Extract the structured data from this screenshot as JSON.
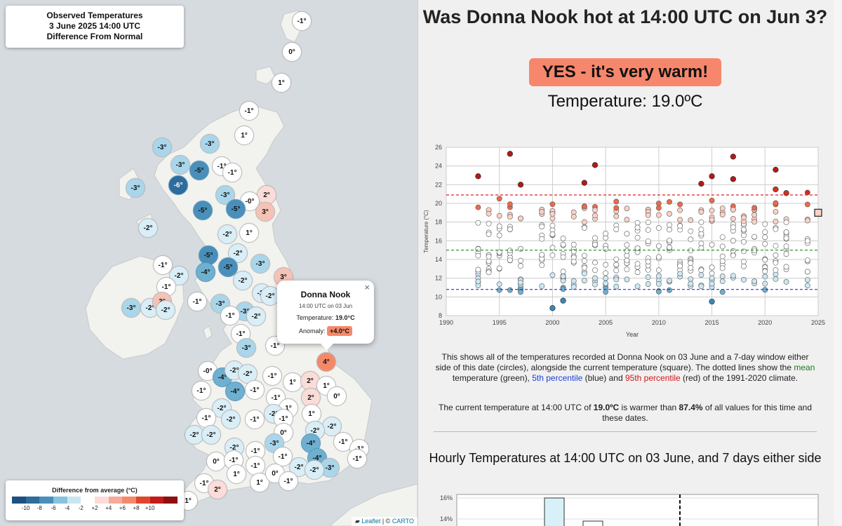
{
  "map": {
    "title_lines": [
      "Observed Temperatures",
      "3 June 2025 14:00 UTC",
      "Difference From Normal"
    ],
    "legend": {
      "title": "Difference from average (°C)",
      "colors": [
        "#1c4f82",
        "#2d6c9c",
        "#4a8fba",
        "#86c3de",
        "#c8e6f2",
        "#ffffff",
        "#fbdcd8",
        "#f7aa99",
        "#f4896a",
        "#e0452e",
        "#c41a1a",
        "#8f0f0f"
      ],
      "ticks": [
        "-10",
        "-8",
        "-6",
        "-4",
        "-2",
        "+2",
        "+4",
        "+6",
        "+8",
        "+10"
      ]
    },
    "markers": [
      {
        "label": "-1°",
        "v": -1
      },
      {
        "label": "0°",
        "v": 0
      },
      {
        "label": "1°",
        "v": 1
      },
      {
        "label": "-1°",
        "v": -1
      },
      {
        "label": "1°",
        "v": 1
      },
      {
        "label": "-3°",
        "v": -3
      },
      {
        "label": "-3°",
        "v": -3
      },
      {
        "label": "-3°",
        "v": -3
      },
      {
        "label": "-5°",
        "v": -5
      },
      {
        "label": "-1°",
        "v": -1
      },
      {
        "label": "-1°",
        "v": -1
      },
      {
        "label": "-6°",
        "v": -6
      },
      {
        "label": "-3°",
        "v": -3
      },
      {
        "label": "-3°",
        "v": -3
      },
      {
        "label": "2°",
        "v": 2
      },
      {
        "label": "-0°",
        "v": 0
      },
      {
        "label": "-5°",
        "v": -5
      },
      {
        "label": "-5°",
        "v": -5
      },
      {
        "label": "3°",
        "v": 3
      },
      {
        "label": "-2°",
        "v": -2
      },
      {
        "label": "-2°",
        "v": -2
      },
      {
        "label": "1°",
        "v": 1
      },
      {
        "label": "-5°",
        "v": -5
      },
      {
        "label": "-2°",
        "v": -2
      },
      {
        "label": "-1°",
        "v": -1
      },
      {
        "label": "-4°",
        "v": -4
      },
      {
        "label": "-5°",
        "v": -5
      },
      {
        "label": "-3°",
        "v": -3
      },
      {
        "label": "3°",
        "v": 3
      },
      {
        "label": "-2°",
        "v": -2
      },
      {
        "label": "-1°",
        "v": -1
      },
      {
        "label": "-2°",
        "v": -2
      },
      {
        "label": "-2°",
        "v": -2
      },
      {
        "label": "-3°",
        "v": -3
      },
      {
        "label": "-3°",
        "v": -3
      },
      {
        "label": "-2°",
        "v": -2
      },
      {
        "label": "-1°",
        "v": -1
      },
      {
        "label": "-3°",
        "v": -3
      },
      {
        "label": "-2°",
        "v": -2
      },
      {
        "label": "-1°",
        "v": -1
      },
      {
        "label": "3°",
        "v": 3
      },
      {
        "label": "-2°",
        "v": -2
      },
      {
        "label": "-2°",
        "v": -2
      },
      {
        "label": "-1°",
        "v": -1
      },
      {
        "label": "-3°",
        "v": -3
      },
      {
        "label": "-1°",
        "v": -1
      },
      {
        "label": "4°",
        "v": 4
      },
      {
        "label": "-0°",
        "v": 0
      },
      {
        "label": "-4°",
        "v": -4
      },
      {
        "label": "-2°",
        "v": -2
      },
      {
        "label": "-2°",
        "v": -2
      },
      {
        "label": "-1°",
        "v": -1
      },
      {
        "label": "1°",
        "v": 1
      },
      {
        "label": "2°",
        "v": 2
      },
      {
        "label": "1°",
        "v": 1
      },
      {
        "label": "-1°",
        "v": -1
      },
      {
        "label": "-4°",
        "v": -4
      },
      {
        "label": "-1°",
        "v": -1
      },
      {
        "label": "2°",
        "v": 2
      },
      {
        "label": "0°",
        "v": 0
      },
      {
        "label": "-2°",
        "v": -2
      },
      {
        "label": "-1°",
        "v": -1
      },
      {
        "label": "1°",
        "v": 1
      },
      {
        "label": "-1°",
        "v": -1
      },
      {
        "label": "-2°",
        "v": -2
      },
      {
        "label": "-1°",
        "v": -1
      },
      {
        "label": "-2°",
        "v": -2
      },
      {
        "label": "1°",
        "v": 1
      },
      {
        "label": "-2°",
        "v": -2
      },
      {
        "label": "-2°",
        "v": -2
      },
      {
        "label": "-2°",
        "v": -2
      },
      {
        "label": "-1°",
        "v": -1
      },
      {
        "label": "0°",
        "v": 0
      },
      {
        "label": "-2°",
        "v": -2
      },
      {
        "label": "-1°",
        "v": -1
      },
      {
        "label": "-2°",
        "v": -2
      },
      {
        "label": "-3°",
        "v": -3
      },
      {
        "label": "-4°",
        "v": -4
      },
      {
        "label": "-1°",
        "v": -1
      },
      {
        "label": "0°",
        "v": 0
      },
      {
        "label": "-1°",
        "v": -1
      },
      {
        "label": "-1°",
        "v": -1
      },
      {
        "label": "-1°",
        "v": -1
      },
      {
        "label": "-4°",
        "v": -4
      },
      {
        "label": "-2°",
        "v": -2
      },
      {
        "label": "-3°",
        "v": -3
      },
      {
        "label": "1°",
        "v": 1
      },
      {
        "label": "-1°",
        "v": -1
      },
      {
        "label": "-1°",
        "v": -1
      },
      {
        "label": "-2°",
        "v": -2
      },
      {
        "label": "1°",
        "v": 1
      },
      {
        "label": "0°",
        "v": 0
      },
      {
        "label": "-1°",
        "v": -1
      },
      {
        "label": "-1°",
        "v": -1
      },
      {
        "label": "2°",
        "v": 2
      },
      {
        "label": "1°",
        "v": 1
      }
    ],
    "popup": {
      "name": "Donna Nook",
      "time": "14:00 UTC on 03 Jun",
      "temp_label": "Temperature:",
      "temp_value": "19.0°C",
      "anom_label": "Anomaly:",
      "anom_value": "+4.0°C",
      "close": "×"
    },
    "attribution": {
      "leaflet": "Leaflet",
      "sep": " | © ",
      "carto": "CARTO"
    }
  },
  "panel": {
    "question": "Was Donna Nook hot at 14:00 UTC on Jun 3?",
    "answer": "YES - it's very warm!",
    "answer_color": "#f7876c",
    "temperature_text": "Temperature: 19.0ºC",
    "description": {
      "part1": "This shows all of the temperatures recorded at Donna Nook on 03 June and a 7-day window either side of this date (circles), alongside the current temperature (square). The dotted lines show the ",
      "mean": "mean",
      "part2": " temperature (green), ",
      "p5": "5th percentile",
      "part3": " (blue) and ",
      "p95": "95th percentile",
      "part4": " (red) of the 1991-2020 climate."
    },
    "percent_text": {
      "part1": "The current temperature at 14:00 UTC of ",
      "temp": "19.0ºC",
      "part2": " is warmer than ",
      "pct": "87.4%",
      "part3": " of all values for this time and these dates."
    },
    "hourly_title": "Hourly Temperatures at 14:00 UTC on 03 June, and 7 days either side"
  },
  "chart_data": [
    {
      "type": "scatter",
      "xlabel": "Year",
      "ylabel": "Temperature (°C)",
      "xlim": [
        1990,
        2025
      ],
      "ylim": [
        8,
        26
      ],
      "xticks": [
        1990,
        1995,
        2000,
        2005,
        2010,
        2015,
        2020,
        2025
      ],
      "yticks": [
        8,
        10,
        12,
        14,
        16,
        18,
        20,
        22,
        24,
        26
      ],
      "grid": true,
      "reference_lines": [
        {
          "name": "95th percentile",
          "y": 20.9,
          "color": "#e02020"
        },
        {
          "name": "mean",
          "y": 15.0,
          "color": "#1a8a1a"
        },
        {
          "name": "5th percentile",
          "y": 10.8,
          "color": "#2030e0"
        }
      ],
      "current": {
        "x": 2025,
        "y": 19.0
      },
      "highlights": [
        {
          "x": 1993,
          "y": 22.9
        },
        {
          "x": 1996,
          "y": 25.3
        },
        {
          "x": 1997,
          "y": 22.0
        },
        {
          "x": 2004,
          "y": 24.1
        },
        {
          "x": 2003,
          "y": 22.2
        },
        {
          "x": 2014,
          "y": 22.1
        },
        {
          "x": 2015,
          "y": 22.9
        },
        {
          "x": 2017,
          "y": 25.0
        },
        {
          "x": 2017,
          "y": 22.6
        },
        {
          "x": 2021,
          "y": 23.6
        },
        {
          "x": 2021,
          "y": 21.5
        },
        {
          "x": 2022,
          "y": 21.1
        },
        {
          "x": 2000,
          "y": 8.8
        },
        {
          "x": 2001,
          "y": 9.6
        },
        {
          "x": 2015,
          "y": 9.5
        }
      ]
    },
    {
      "type": "bar",
      "yticks": [
        "16%",
        "14%"
      ]
    }
  ]
}
